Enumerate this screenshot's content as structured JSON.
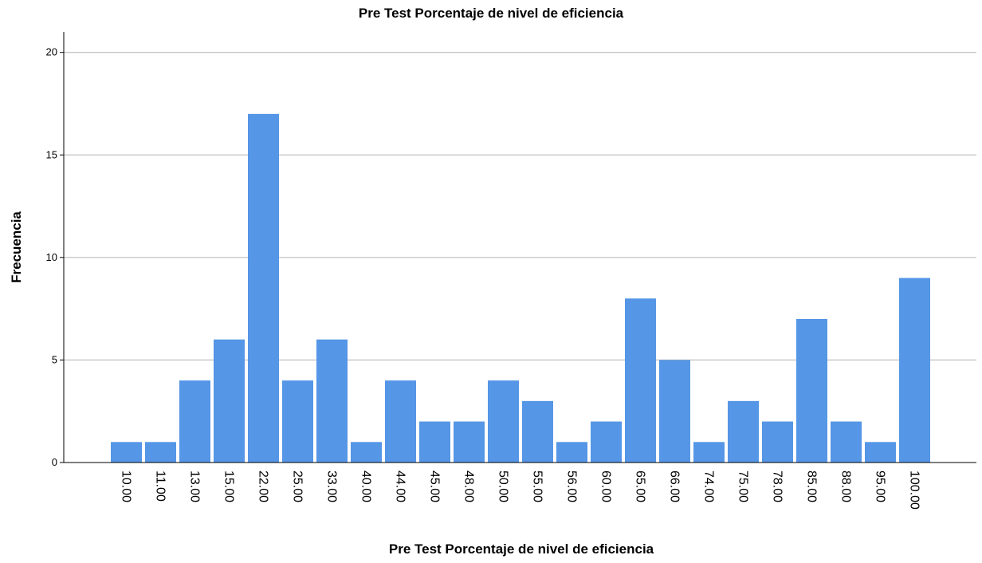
{
  "chart_data": {
    "type": "bar",
    "title": "Pre Test Porcentaje de nivel de eficiencia",
    "x_label": "Pre Test Porcentaje de nivel de eficiencia",
    "y_label": "Frecuencia",
    "categories": [
      "10.00",
      "11.00",
      "13.00",
      "15.00",
      "22.00",
      "25.00",
      "33.00",
      "40.00",
      "44.00",
      "45.00",
      "48.00",
      "50.00",
      "55.00",
      "56.00",
      "60.00",
      "65.00",
      "66.00",
      "74.00",
      "75.00",
      "78.00",
      "85.00",
      "88.00",
      "95.00",
      "100.00"
    ],
    "values": [
      1,
      1,
      4,
      6,
      17,
      4,
      6,
      1,
      4,
      2,
      2,
      4,
      3,
      1,
      2,
      8,
      5,
      1,
      3,
      2,
      7,
      2,
      1,
      9
    ],
    "color": "#5596e6",
    "ylim": [
      0,
      21
    ],
    "yticks": [
      0,
      5,
      10,
      15,
      20
    ],
    "grid": true
  }
}
